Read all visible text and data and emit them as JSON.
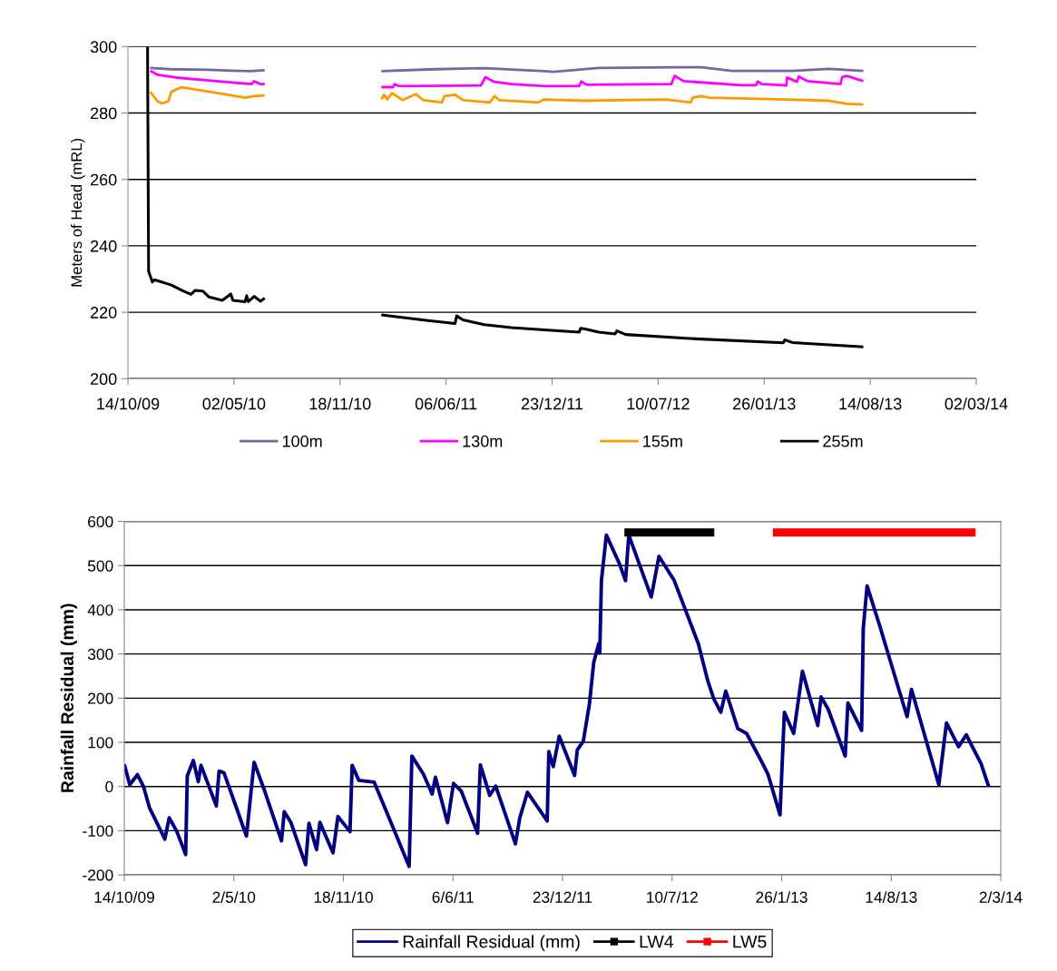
{
  "chart_data": [
    {
      "type": "line",
      "ylabel": "Meters of Head (mRL)",
      "ylim": [
        200,
        300
      ],
      "yticks": [
        200,
        220,
        240,
        260,
        280,
        300
      ],
      "xlim": [
        "2009-10-14",
        "2014-03-02"
      ],
      "xticks": [
        {
          "value": "2009-10-14",
          "label": "14/10/09"
        },
        {
          "value": "2010-05-02",
          "label": "02/05/10"
        },
        {
          "value": "2010-11-18",
          "label": "18/11/10"
        },
        {
          "value": "2011-06-06",
          "label": "06/06/11"
        },
        {
          "value": "2011-12-23",
          "label": "23/12/11"
        },
        {
          "value": "2012-07-10",
          "label": "10/07/12"
        },
        {
          "value": "2013-01-26",
          "label": "26/01/13"
        },
        {
          "value": "2013-08-14",
          "label": "14/08/13"
        },
        {
          "value": "2014-03-02",
          "label": "02/03/14"
        }
      ],
      "grid": "y",
      "legend": "bottom",
      "marker": "none",
      "line_style": "solid",
      "series": [
        {
          "name": "100m",
          "color": "#6b6ba8",
          "x": [
            "2009-11-25",
            "2010-01-02",
            "2010-03-13",
            "2010-06-01",
            "2010-06-29",
            "2010-10-09",
            "2011-02-04",
            "2011-05-17",
            "2011-08-17",
            "2011-12-08",
            "2011-12-26",
            "2012-03-20",
            "2012-08-12",
            "2012-09-30",
            "2012-11-26",
            "2013-03-20",
            "2013-05-28",
            "2013-08-01"
          ],
          "values": [
            293.6,
            293.2,
            293.0,
            292.6,
            292.9,
            null,
            292.6,
            293.2,
            293.5,
            292.6,
            292.4,
            293.6,
            293.8,
            293.8,
            292.7,
            292.7,
            293.3,
            292.7
          ]
        },
        {
          "name": "130m",
          "color": "#ff00ff",
          "x": [
            "2009-11-25",
            "2009-12-09",
            "2010-01-18",
            "2010-04-13",
            "2010-06-04",
            "2010-06-09",
            "2010-06-21",
            "2010-06-29",
            "2010-10-09",
            "2011-02-04",
            "2011-02-26",
            "2011-03-01",
            "2011-03-10",
            "2011-08-11",
            "2011-08-19",
            "2011-09-05",
            "2011-10-07",
            "2011-12-08",
            "2012-02-12",
            "2012-02-16",
            "2012-02-26",
            "2012-08-04",
            "2012-08-10",
            "2012-08-27",
            "2012-12-13",
            "2013-01-11",
            "2013-01-14",
            "2013-01-22",
            "2013-03-09",
            "2013-03-10",
            "2013-03-29",
            "2013-04-01",
            "2013-04-18",
            "2013-06-19",
            "2013-06-22",
            "2013-07-01",
            "2013-08-01"
          ],
          "values": [
            292.7,
            291.5,
            290.6,
            289.4,
            288.7,
            289.6,
            288.7,
            288.7,
            null,
            287.8,
            287.8,
            288.7,
            288.1,
            288.3,
            290.8,
            289.4,
            288.7,
            288.1,
            288.1,
            289.5,
            288.5,
            288.7,
            291.2,
            289.6,
            288.4,
            288.4,
            289.5,
            288.7,
            288.3,
            290.7,
            289.4,
            291.0,
            289.6,
            288.7,
            290.8,
            291.2,
            289.6
          ]
        },
        {
          "name": "155m",
          "color": "#ff9900",
          "x": [
            "2009-11-25",
            "2009-12-09",
            "2009-12-17",
            "2009-12-29",
            "2010-01-04",
            "2010-01-23",
            "2010-04-02",
            "2010-05-23",
            "2010-06-09",
            "2010-06-29",
            "2010-10-09",
            "2011-02-04",
            "2011-02-09",
            "2011-02-15",
            "2011-02-24",
            "2011-03-16",
            "2011-04-10",
            "2011-04-24",
            "2011-05-29",
            "2011-06-03",
            "2011-06-23",
            "2011-07-08",
            "2011-08-28",
            "2011-09-05",
            "2011-09-14",
            "2011-11-27",
            "2011-12-08",
            "2012-02-21",
            "2012-07-24",
            "2012-09-10",
            "2012-09-13",
            "2012-09-30",
            "2012-10-14",
            "2013-03-09",
            "2013-05-28",
            "2013-07-01",
            "2013-08-01"
          ],
          "values": [
            286.4,
            283.5,
            282.9,
            283.5,
            286.4,
            287.8,
            286.0,
            284.6,
            285.1,
            285.3,
            null,
            284.1,
            285.5,
            284.1,
            286.0,
            283.9,
            285.7,
            283.9,
            283.2,
            285.1,
            285.5,
            283.9,
            283.2,
            285.1,
            283.9,
            283.2,
            284.1,
            283.7,
            284.1,
            283.2,
            284.6,
            285.1,
            284.6,
            284.1,
            283.7,
            282.8,
            282.6
          ]
        },
        {
          "name": "255m",
          "color": "#000000",
          "x": [
            "2009-11-20",
            "2009-11-22",
            "2009-11-29",
            "2009-12-03",
            "2010-01-04",
            "2010-01-26",
            "2010-02-10",
            "2010-02-18",
            "2010-03-04",
            "2010-03-16",
            "2010-04-10",
            "2010-04-26",
            "2010-04-30",
            "2010-05-23",
            "2010-05-26",
            "2010-05-29",
            "2010-06-09",
            "2010-06-21",
            "2010-06-29",
            "2010-10-09",
            "2011-02-04",
            "2011-05-03",
            "2011-06-23",
            "2011-06-26",
            "2011-07-08",
            "2011-08-17",
            "2011-10-07",
            "2011-12-08",
            "2012-02-12",
            "2012-02-15",
            "2012-02-23",
            "2012-03-20",
            "2012-04-20",
            "2012-04-23",
            "2012-05-10",
            "2012-09-19",
            "2013-03-03",
            "2013-03-06",
            "2013-03-20",
            "2013-08-01"
          ],
          "values": [
            300,
            232.3,
            229.1,
            229.8,
            228.2,
            226.4,
            225.4,
            226.6,
            226.4,
            224.6,
            223.6,
            225.5,
            223.6,
            223.2,
            225.0,
            223.2,
            224.8,
            223.3,
            224.3,
            null,
            219.2,
            217.5,
            216.6,
            218.9,
            217.7,
            216.3,
            215.4,
            214.7,
            214.0,
            215.2,
            215.0,
            214.0,
            213.5,
            214.4,
            213.3,
            212.0,
            210.8,
            211.7,
            210.9,
            209.6
          ]
        }
      ]
    },
    {
      "type": "line",
      "ylabel": "Rainfall Residual (mm)",
      "ylim": [
        -200,
        600
      ],
      "yticks": [
        -200,
        -100,
        0,
        100,
        200,
        300,
        400,
        500,
        600
      ],
      "xlim": [
        "2009-10-14",
        "2014-03-02"
      ],
      "xticks": [
        {
          "value": "2009-10-14",
          "label": "14/10/09"
        },
        {
          "value": "2010-05-02",
          "label": "2/5/10"
        },
        {
          "value": "2010-11-18",
          "label": "18/11/10"
        },
        {
          "value": "2011-06-06",
          "label": "6/6/11"
        },
        {
          "value": "2011-12-23",
          "label": "23/12/11"
        },
        {
          "value": "2012-07-10",
          "label": "10/7/12"
        },
        {
          "value": "2013-01-26",
          "label": "26/1/13"
        },
        {
          "value": "2013-08-14",
          "label": "14/8/13"
        },
        {
          "value": "2014-03-02",
          "label": "2/3/14"
        }
      ],
      "grid": "y",
      "legend": "bottom",
      "marker": "none",
      "line_style": "solid",
      "series": [
        {
          "name": "Rainfall Residual (mm)",
          "color": "#000080",
          "x": [
            "2009-10-14",
            "2009-10-24",
            "2009-11-07",
            "2009-11-18",
            "2009-11-29",
            "2009-12-27",
            "2010-01-04",
            "2010-01-18",
            "2010-02-03",
            "2010-02-06",
            "2010-02-17",
            "2010-02-26",
            "2010-03-03",
            "2010-03-31",
            "2010-04-05",
            "2010-04-14",
            "2010-05-25",
            "2010-06-08",
            "2010-06-28",
            "2010-07-28",
            "2010-08-02",
            "2010-08-14",
            "2010-09-10",
            "2010-09-16",
            "2010-09-30",
            "2010-10-06",
            "2010-10-30",
            "2010-11-08",
            "2010-11-30",
            "2010-12-04",
            "2010-12-16",
            "2011-01-13",
            "2011-02-04",
            "2011-03-18",
            "2011-03-23",
            "2011-04-13",
            "2011-04-29",
            "2011-05-05",
            "2011-05-27",
            "2011-06-07",
            "2011-06-21",
            "2011-07-21",
            "2011-07-26",
            "2011-08-12",
            "2011-08-23",
            "2011-09-28",
            "2011-10-06",
            "2011-10-20",
            "2011-11-25",
            "2011-11-28",
            "2011-12-06",
            "2011-12-17",
            "2012-01-14",
            "2012-01-19",
            "2012-01-30",
            "2012-02-10",
            "2012-02-18",
            "2012-02-27",
            "2012-02-29",
            "2012-03-03",
            "2012-03-12",
            "2012-04-05",
            "2012-04-16",
            "2012-04-22",
            "2012-06-02",
            "2012-06-16",
            "2012-07-14",
            "2012-08-27",
            "2012-09-13",
            "2012-09-24",
            "2012-10-07",
            "2012-10-16",
            "2012-11-07",
            "2012-11-23",
            "2012-12-21",
            "2013-01-01",
            "2013-01-23",
            "2013-01-31",
            "2013-02-17",
            "2013-03-05",
            "2013-04-02",
            "2013-04-08",
            "2013-04-21",
            "2013-05-22",
            "2013-05-27",
            "2013-06-21",
            "2013-06-24",
            "2013-07-01",
            "2013-07-24",
            "2013-09-12",
            "2013-09-20",
            "2013-11-09",
            "2013-11-23",
            "2013-12-15",
            "2013-12-29",
            "2014-01-25",
            "2014-02-08"
          ],
          "values": [
            50,
            4,
            27,
            0,
            -48,
            -119,
            -71,
            -102,
            -154,
            24,
            59,
            11,
            48,
            -44,
            35,
            31,
            -112,
            55,
            -13,
            -123,
            -57,
            -81,
            -177,
            -83,
            -143,
            -81,
            -150,
            -68,
            -102,
            48,
            14,
            10,
            -55,
            -181,
            69,
            28,
            -17,
            21,
            -82,
            7,
            -10,
            -106,
            49,
            -20,
            1,
            -130,
            -71,
            -13,
            -78,
            79,
            45,
            114,
            25,
            83,
            103,
            186,
            281,
            323,
            302,
            466,
            569,
            504,
            466,
            569,
            429,
            521,
            466,
            323,
            240,
            199,
            168,
            216,
            131,
            120,
            55,
            28,
            -64,
            168,
            120,
            261,
            138,
            203,
            175,
            69,
            189,
            127,
            357,
            454,
            364,
            158,
            220,
            4,
            144,
            90,
            117,
            52,
            0
          ]
        },
        {
          "name": "LW4",
          "color": "#000000",
          "x": [
            "2012-04-14",
            "2012-09-25"
          ],
          "values": [
            575,
            575
          ]
        },
        {
          "name": "LW5",
          "color": "#ff0000",
          "x": [
            "2013-01-10",
            "2014-01-15"
          ],
          "values": [
            575,
            575
          ]
        }
      ]
    }
  ]
}
